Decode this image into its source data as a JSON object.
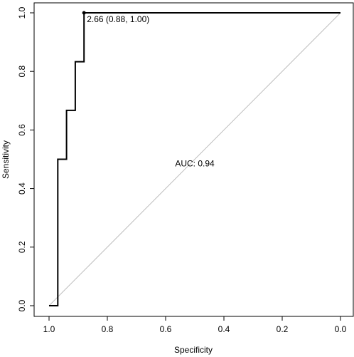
{
  "chart_data": {
    "type": "line",
    "xlabel": "Specificity",
    "ylabel": "Sensitivity",
    "xlim": [
      1.02,
      -0.02
    ],
    "ylim": [
      -0.02,
      1.02
    ],
    "x_reversed": true,
    "x_ticks": [
      "1.0",
      "0.8",
      "0.6",
      "0.4",
      "0.2",
      "0.0"
    ],
    "y_ticks": [
      "0.0",
      "0.2",
      "0.4",
      "0.6",
      "0.8",
      "1.0"
    ],
    "grid": false,
    "series": [
      {
        "kind": "roc-step",
        "color": "#000000",
        "specificity": [
          1.0,
          0.97,
          0.97,
          0.94,
          0.94,
          0.91,
          0.91,
          0.88,
          0.88,
          0.0
        ],
        "sensitivity": [
          0.0,
          0.0,
          0.5,
          0.5,
          0.667,
          0.667,
          0.833,
          0.833,
          1.0,
          1.0
        ]
      }
    ],
    "diagonal": {
      "color": "#bebebe",
      "from": [
        1.0,
        0.0
      ],
      "to": [
        0.0,
        1.0
      ]
    },
    "best_threshold": {
      "specificity": 0.88,
      "sensitivity": 1.0,
      "label": "2.66 (0.88, 1.00)"
    },
    "annotation": {
      "text": "AUC: 0.94",
      "specificity": 0.5,
      "sensitivity": 0.485
    }
  }
}
